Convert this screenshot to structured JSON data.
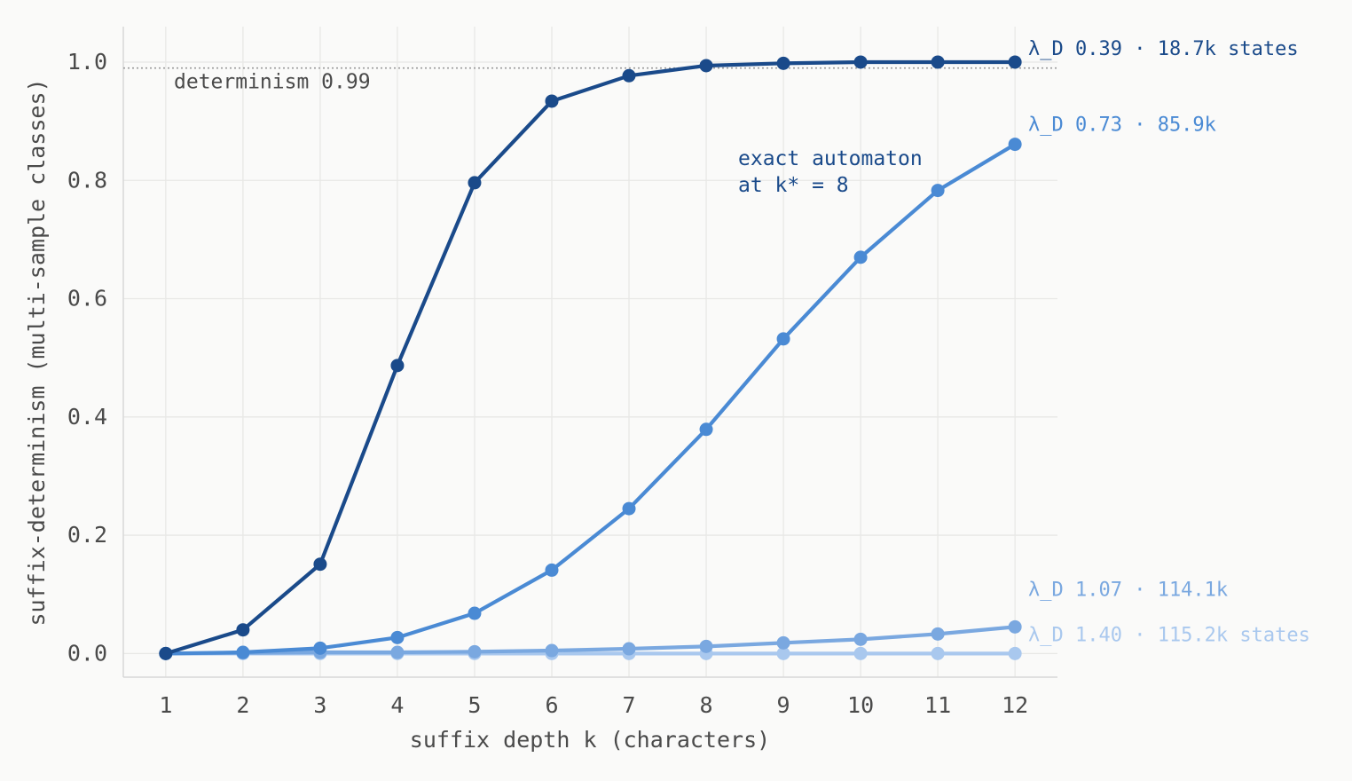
{
  "chart_data": {
    "type": "line",
    "xlabel": "suffix depth k (characters)",
    "ylabel": "suffix-determinism (multi-sample classes)",
    "xlim": [
      0.45,
      12.55
    ],
    "ylim": [
      -0.04,
      1.06
    ],
    "x": [
      1,
      2,
      3,
      4,
      5,
      6,
      7,
      8,
      9,
      10,
      11,
      12
    ],
    "xticks": [
      "1",
      "2",
      "3",
      "4",
      "5",
      "6",
      "7",
      "8",
      "9",
      "10",
      "11",
      "12"
    ],
    "yticks": [
      "0.0",
      "0.2",
      "0.4",
      "0.6",
      "0.8",
      "1.0"
    ],
    "grid": true,
    "reference_line": {
      "y": 0.99,
      "label": "determinism 0.99",
      "color": "#9a9a9a"
    },
    "annotation": {
      "line1": "exact automaton",
      "line2": "at k* = 8",
      "x": 8.4,
      "y": 0.8,
      "color": "#1a4a8a"
    },
    "series": [
      {
        "label": "λ_D 0.39 · 18.7k states",
        "color": "#1a4a8a",
        "values": [
          0.0,
          0.04,
          0.151,
          0.487,
          0.796,
          0.934,
          0.977,
          0.994,
          0.998,
          1.0,
          1.0,
          1.0
        ]
      },
      {
        "label": "λ_D 0.73 · 85.9k",
        "color": "#4a8ad4",
        "values": [
          0.0,
          0.002,
          0.009,
          0.027,
          0.068,
          0.141,
          0.245,
          0.379,
          0.532,
          0.67,
          0.783,
          0.861
        ]
      },
      {
        "label": "λ_D 1.07 · 114.1k",
        "color": "#7aa8e0",
        "values": [
          0.0,
          0.001,
          0.002,
          0.002,
          0.003,
          0.005,
          0.008,
          0.012,
          0.018,
          0.024,
          0.033,
          0.045
        ]
      },
      {
        "label": "λ_D 1.40 · 115.2k states",
        "color": "#a9c8ee",
        "values": [
          0.0,
          0.0,
          0.0,
          0.0,
          0.0,
          0.0,
          0.0,
          0.0,
          0.0,
          0.0,
          0.0,
          0.0
        ]
      }
    ]
  }
}
